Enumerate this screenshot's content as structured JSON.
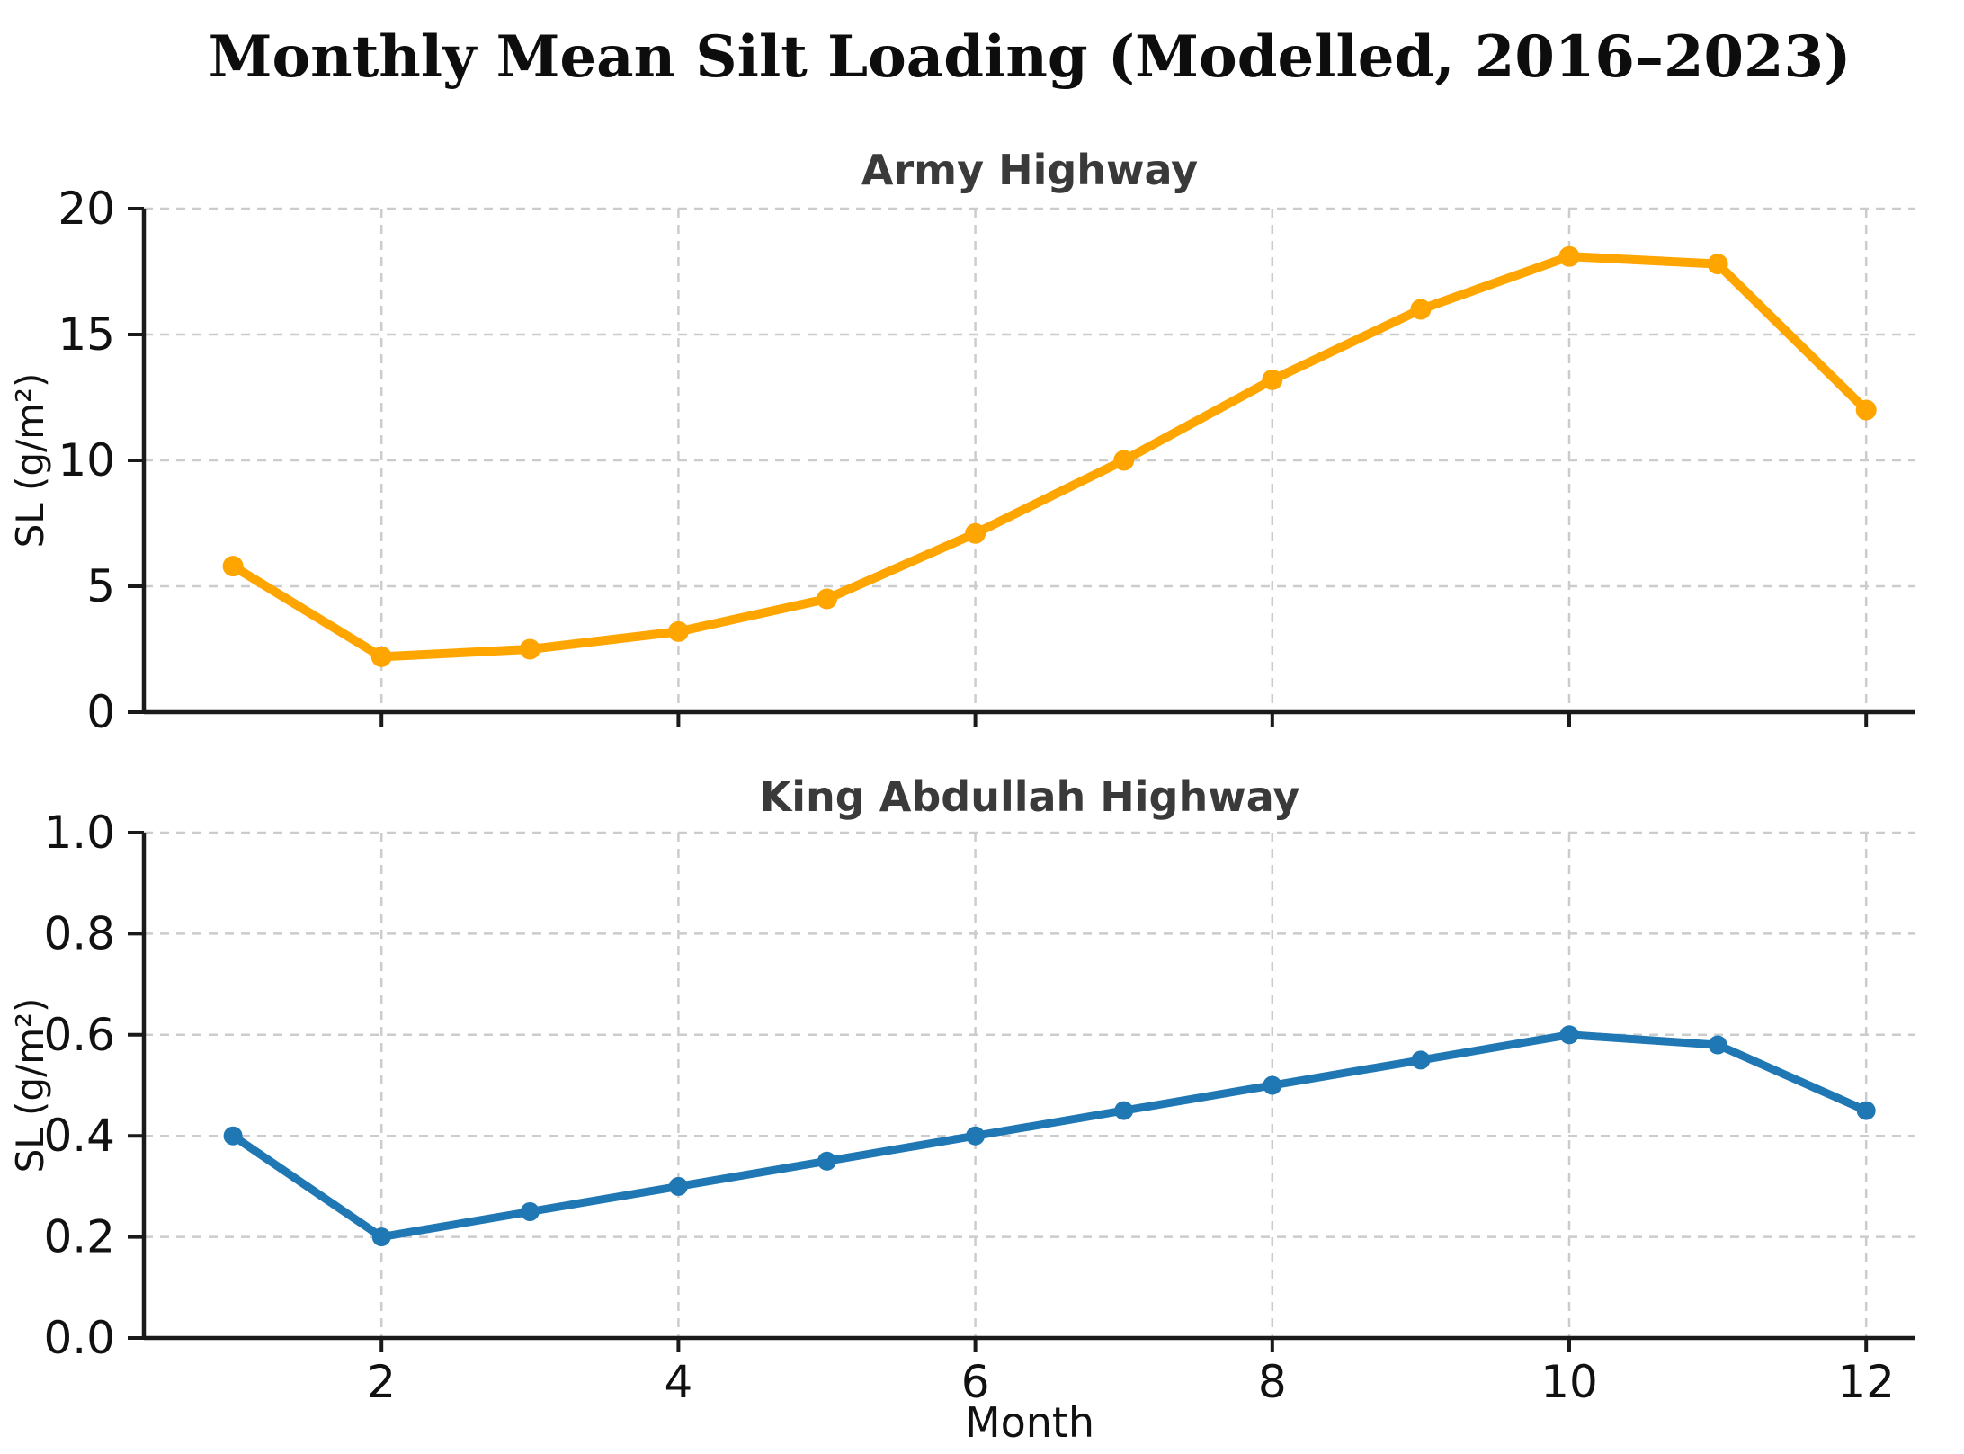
{
  "figure": {
    "title": "Monthly Mean Silt Loading (Modelled, 2016–2023)"
  },
  "chart_data": [
    {
      "type": "line",
      "title": "Army Highway",
      "x": [
        1,
        2,
        3,
        4,
        5,
        6,
        7,
        8,
        9,
        10,
        11,
        12
      ],
      "values": [
        5.8,
        2.2,
        2.5,
        3.2,
        4.5,
        7.1,
        10.0,
        13.2,
        16.0,
        18.1,
        17.8,
        12.0
      ],
      "xlabel": "",
      "ylabel": "SL (g/m²)",
      "ylim": [
        0,
        20
      ],
      "yticks": [
        0,
        5,
        10,
        15,
        20
      ],
      "ytick_labels": [
        "0",
        "5",
        "10",
        "15",
        "20"
      ],
      "xticks": [
        2,
        4,
        6,
        8,
        10,
        12
      ],
      "xtick_labels": [
        "2",
        "4",
        "6",
        "8",
        "10",
        "12"
      ],
      "show_xtick_labels": false,
      "grid": true,
      "legend": "none",
      "marker": "circle",
      "color": "#FFA500"
    },
    {
      "type": "line",
      "title": "King Abdullah Highway",
      "x": [
        1,
        2,
        3,
        4,
        5,
        6,
        7,
        8,
        9,
        10,
        11,
        12
      ],
      "values": [
        0.4,
        0.2,
        0.25,
        0.3,
        0.35,
        0.4,
        0.45,
        0.5,
        0.55,
        0.6,
        0.58,
        0.45
      ],
      "xlabel": "Month",
      "ylabel": "SL (g/m²)",
      "ylim": [
        0,
        1.0
      ],
      "yticks": [
        0,
        0.2,
        0.4,
        0.6,
        0.8,
        1.0
      ],
      "ytick_labels": [
        "0.0",
        "0.2",
        "0.4",
        "0.6",
        "0.8",
        "1.0"
      ],
      "xticks": [
        2,
        4,
        6,
        8,
        10,
        12
      ],
      "xtick_labels": [
        "2",
        "4",
        "6",
        "8",
        "10",
        "12"
      ],
      "show_xtick_labels": true,
      "grid": true,
      "legend": "none",
      "marker": "circle",
      "color": "#1f77b4"
    }
  ],
  "style": {
    "grid_color": "#cccccc",
    "axis_color": "#1a1a1a",
    "title_color": "#0d0d0d",
    "subtitle_color": "#3a3a3a",
    "background": "#ffffff"
  }
}
